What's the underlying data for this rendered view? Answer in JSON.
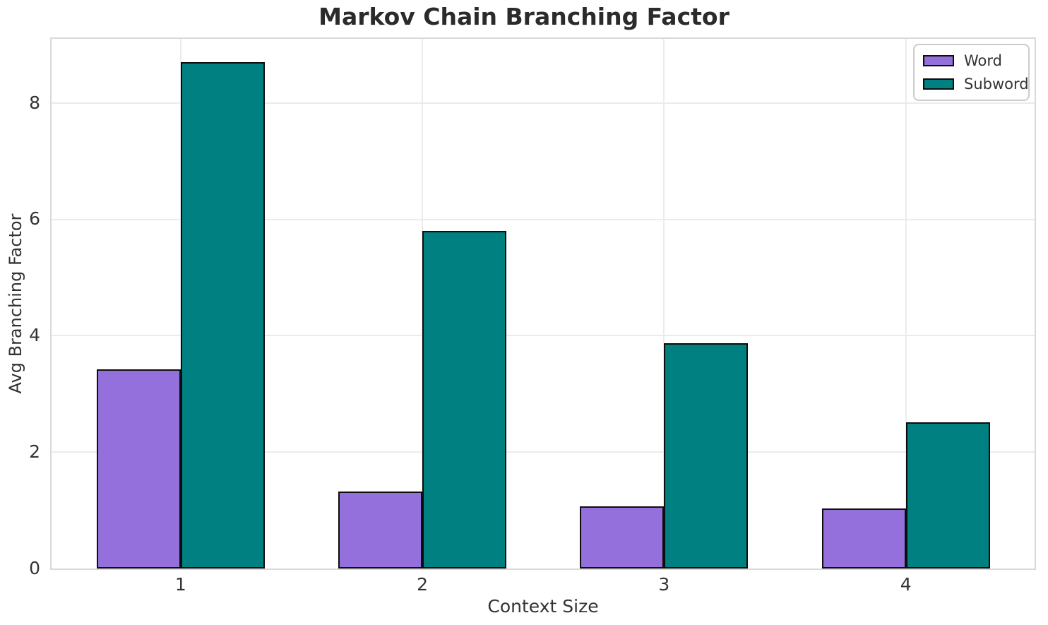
{
  "chart_data": {
    "type": "bar",
    "title": "Markov Chain Branching Factor",
    "xlabel": "Context Size",
    "ylabel": "Avg Branching Factor",
    "categories": [
      "1",
      "2",
      "3",
      "4"
    ],
    "series": [
      {
        "name": "Word",
        "color": "#9370DB",
        "values": [
          3.42,
          1.32,
          1.07,
          1.03
        ]
      },
      {
        "name": "Subword",
        "color": "#008080",
        "values": [
          8.7,
          5.8,
          3.87,
          2.51
        ]
      }
    ],
    "yticks": [
      0,
      2,
      4,
      6,
      8
    ],
    "ylim": [
      0,
      9.1
    ],
    "grid": true,
    "legend_position": "upper right",
    "bar_edge_color": "#0d0d0d"
  }
}
